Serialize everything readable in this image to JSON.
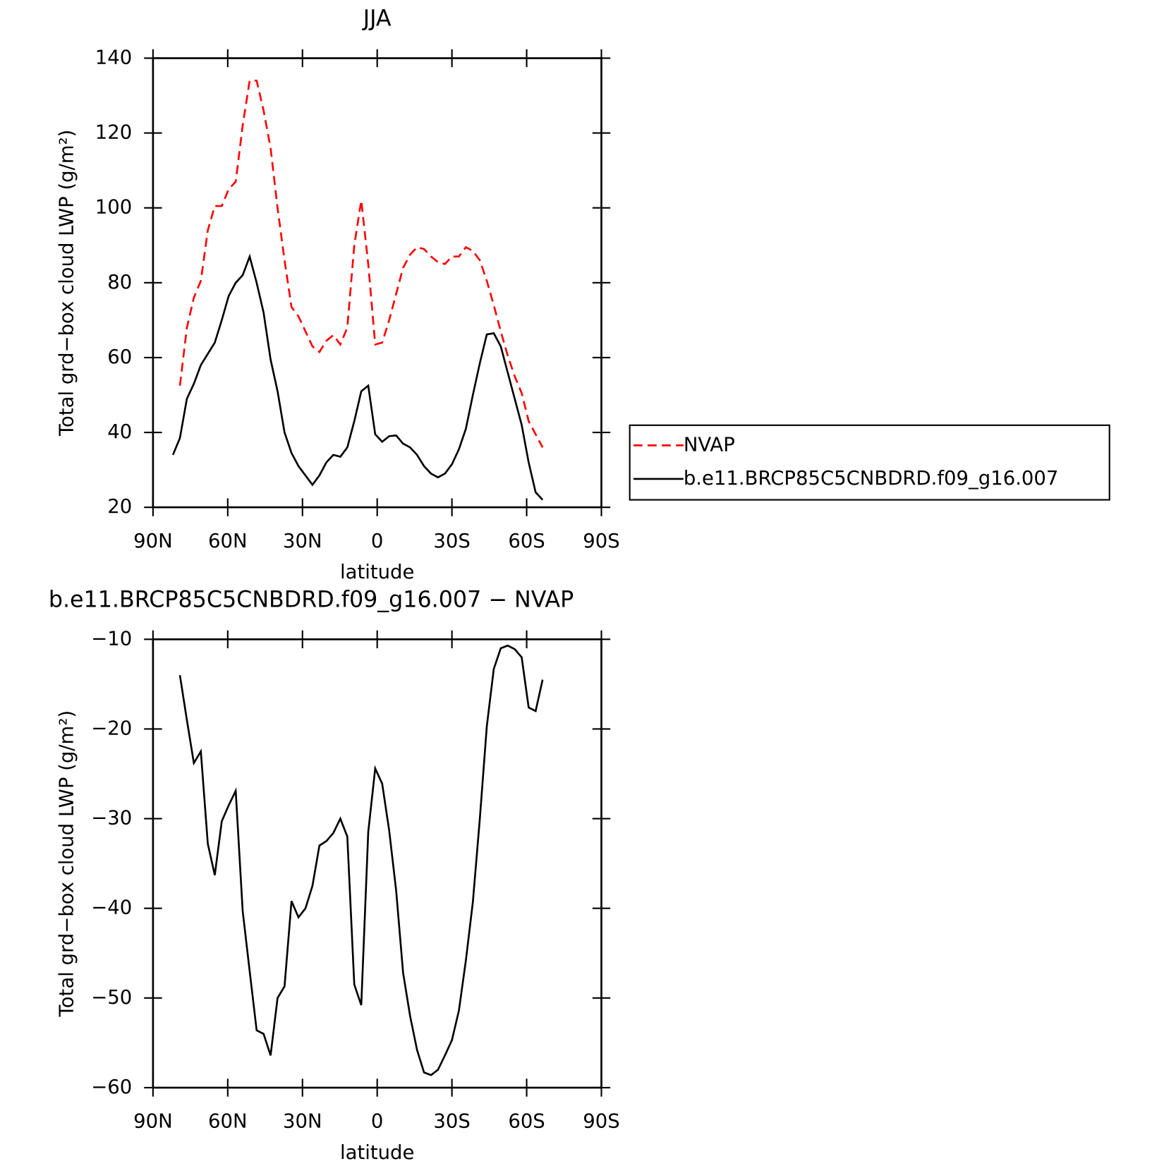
{
  "chart_data": [
    {
      "type": "line",
      "title": "JJA",
      "xlabel": "latitude",
      "ylabel": "Total grd−box cloud LWP (g/m²)",
      "x": [
        82,
        79.2,
        76.4,
        73.6,
        70.8,
        68,
        65.2,
        62.4,
        59.6,
        56.8,
        54,
        51.2,
        48.4,
        45.6,
        42.8,
        40,
        37.2,
        34.4,
        31.6,
        28.8,
        26,
        23.2,
        20.4,
        17.6,
        14.8,
        12,
        9.2,
        6.4,
        3.6,
        0.8,
        -2,
        -4.8,
        -7.6,
        -10.4,
        -13.2,
        -16,
        -18.8,
        -21.6,
        -24.4,
        -27.2,
        -30,
        -32.8,
        -35.6,
        -38.4,
        -41.2,
        -44,
        -46.8,
        -49.6,
        -52.4,
        -55.2,
        -58,
        -60.8,
        -63.6,
        -66.4
      ],
      "series": [
        {
          "name": "NVAP",
          "color": "#ff0000",
          "dash": true,
          "values": [
            null,
            52.5,
            68,
            76,
            80.5,
            94,
            100.5,
            100.5,
            105,
            107,
            122,
            134,
            134,
            126,
            116,
            100,
            86,
            73.5,
            71,
            67,
            63,
            61.5,
            64.5,
            66,
            63.5,
            68,
            90,
            102,
            85,
            63.5,
            64,
            70,
            77,
            84,
            87.5,
            89.5,
            89,
            87,
            85.5,
            85,
            87,
            87,
            89.5,
            88.5,
            86,
            80.5,
            74,
            67,
            60.5,
            55,
            50.5,
            43,
            39.5,
            36
          ]
        },
        {
          "name": "b.e11.BRCP85C5CNBDRD.f09_g16.007",
          "color": "#000000",
          "dash": false,
          "values": [
            34,
            38.5,
            49,
            53,
            58,
            61,
            64,
            70,
            76.5,
            80,
            82,
            87,
            80,
            72,
            59.5,
            51,
            40,
            34.5,
            31,
            28.5,
            26,
            28.5,
            32,
            34,
            33.5,
            36,
            43,
            51,
            52.5,
            39.5,
            37.5,
            39,
            39.2,
            37,
            36,
            34,
            31,
            29,
            28,
            29,
            31.5,
            35.5,
            41,
            50,
            58.5,
            66.2,
            66.5,
            63,
            56,
            49,
            42,
            32,
            24,
            22
          ]
        }
      ],
      "xlim": [
        90,
        -90
      ],
      "xticks": [
        {
          "value": 90,
          "label": "90N"
        },
        {
          "value": 60,
          "label": "60N"
        },
        {
          "value": 30,
          "label": "30N"
        },
        0,
        {
          "value": -30,
          "label": "30S"
        },
        {
          "value": -60,
          "label": "60S"
        },
        {
          "value": -90,
          "label": "90S"
        }
      ],
      "ylim": [
        20,
        140
      ],
      "yticks": [
        20,
        40,
        60,
        80,
        100,
        120,
        140
      ],
      "legend": "right"
    },
    {
      "type": "line",
      "title": "b.e11.BRCP85C5CNBDRD.f09_g16.007 − NVAP",
      "xlabel": "latitude",
      "ylabel": "Total grd−box cloud LWP (g/m²)",
      "x": [
        82,
        79.2,
        76.4,
        73.6,
        70.8,
        68,
        65.2,
        62.4,
        59.6,
        56.8,
        54,
        51.2,
        48.4,
        45.6,
        42.8,
        40,
        37.2,
        34.4,
        31.6,
        28.8,
        26,
        23.2,
        20.4,
        17.6,
        14.8,
        12,
        9.2,
        6.4,
        3.6,
        0.8,
        -2,
        -4.8,
        -7.6,
        -10.4,
        -13.2,
        -16,
        -18.8,
        -21.6,
        -24.4,
        -27.2,
        -30,
        -32.8,
        -35.6,
        -38.4,
        -41.2,
        -44,
        -46.8,
        -49.6,
        -52.4,
        -55.2,
        -58,
        -60.8,
        -63.6,
        -66.4
      ],
      "series": [
        {
          "color": "#000000",
          "dash": false,
          "values": [
            null,
            -14,
            -19,
            -23.8,
            -22.5,
            -32.8,
            -36.3,
            -30.3,
            -28.5,
            -26.9,
            -40.3,
            -47,
            -53.6,
            -54,
            -56.4,
            -50,
            -48.7,
            -39.2,
            -41,
            -40,
            -37.5,
            -33,
            -32.5,
            -31.6,
            -30,
            -32,
            -48.5,
            -50.8,
            -31.5,
            -24.4,
            -26.1,
            -31.3,
            -38,
            -47.2,
            -52,
            -55.8,
            -58.3,
            -58.6,
            -58,
            -56.4,
            -54.7,
            -51.4,
            -45.8,
            -39.3,
            -30,
            -19.7,
            -13.3,
            -11,
            -10.7,
            -11.1,
            -12,
            -17.6,
            -18,
            -14.5
          ]
        }
      ],
      "xlim": [
        90,
        -90
      ],
      "xticks": [
        {
          "value": 90,
          "label": "90N"
        },
        {
          "value": 60,
          "label": "60N"
        },
        {
          "value": 30,
          "label": "30N"
        },
        0,
        {
          "value": -30,
          "label": "30S"
        },
        {
          "value": -60,
          "label": "60S"
        },
        {
          "value": -90,
          "label": "90S"
        }
      ],
      "ylim": [
        -60,
        -10
      ],
      "yticks": [
        {
          "value": -60,
          "label": "−60"
        },
        {
          "value": -50,
          "label": "−50"
        },
        {
          "value": -40,
          "label": "−40"
        },
        {
          "value": -30,
          "label": "−30"
        },
        {
          "value": -20,
          "label": "−20"
        },
        {
          "value": -10,
          "label": "−10"
        }
      ]
    }
  ]
}
